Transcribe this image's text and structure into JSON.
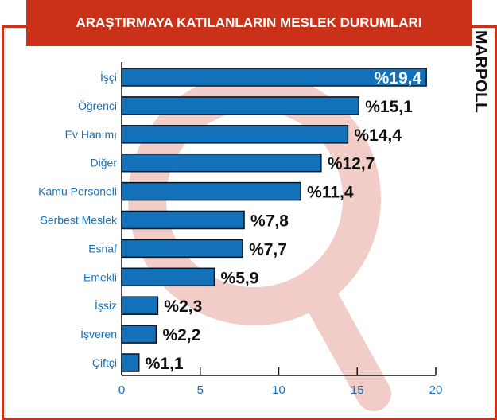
{
  "title": "ARAŞTIRMAYA KATILANLARIN MESLEK DURUMLARI",
  "logo_text": "MARPOLL",
  "colors": {
    "bar": "#1271b8",
    "accent": "#c93118",
    "label": "#1a6fb5",
    "watermark": "#f2cbc5"
  },
  "chart_data": {
    "type": "bar",
    "orientation": "horizontal",
    "title": "ARAŞTIRMAYA KATILANLARIN MESLEK DURUMLARI",
    "categories": [
      "İşçi",
      "Öğrenci",
      "Ev Hanımı",
      "Diğer",
      "Kamu Personeli",
      "Serbest Meslek",
      "Esnaf",
      "Emekli",
      "İşsiz",
      "İşveren",
      "Çiftçi"
    ],
    "values": [
      19.4,
      15.1,
      14.4,
      12.7,
      11.4,
      7.8,
      7.7,
      5.9,
      2.3,
      2.2,
      1.1
    ],
    "value_labels": [
      "%19,4",
      "%15,1",
      "%14,4",
      "%12,7",
      "%11,4",
      "%7,8",
      "%7,7",
      "%5,9",
      "%2,3",
      "%2,2",
      "%1,1"
    ],
    "xlim": [
      0,
      20
    ],
    "xticks": [
      "0",
      "5",
      "10",
      "15",
      "20"
    ],
    "xlabel": "",
    "ylabel": "",
    "grid": false
  }
}
